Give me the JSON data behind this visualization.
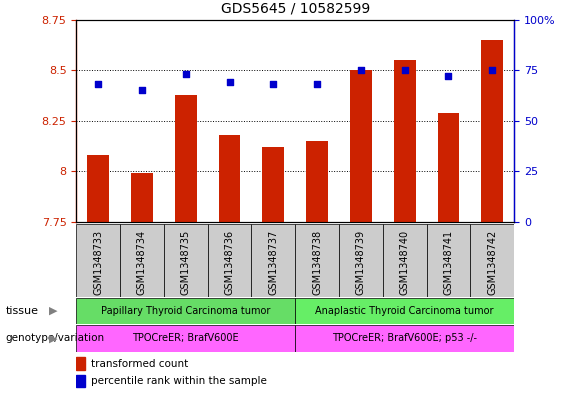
{
  "title": "GDS5645 / 10582599",
  "samples": [
    "GSM1348733",
    "GSM1348734",
    "GSM1348735",
    "GSM1348736",
    "GSM1348737",
    "GSM1348738",
    "GSM1348739",
    "GSM1348740",
    "GSM1348741",
    "GSM1348742"
  ],
  "transformed_count": [
    8.08,
    7.99,
    8.38,
    8.18,
    8.12,
    8.15,
    8.5,
    8.55,
    8.29,
    8.65
  ],
  "percentile_rank": [
    68,
    65,
    73,
    69,
    68,
    68,
    75,
    75,
    72,
    75
  ],
  "ylim_left": [
    7.75,
    8.75
  ],
  "ylim_right": [
    0,
    100
  ],
  "yticks_left": [
    7.75,
    8.0,
    8.25,
    8.5,
    8.75
  ],
  "ytick_labels_left": [
    "7.75",
    "8",
    "8.25",
    "8.5",
    "8.75"
  ],
  "yticks_right": [
    0,
    25,
    50,
    75,
    100
  ],
  "ytick_labels_right": [
    "0",
    "25",
    "50",
    "75",
    "100%"
  ],
  "bar_color": "#cc2200",
  "dot_color": "#0000cc",
  "bar_width": 0.5,
  "tissue_groups": [
    {
      "label": "Papillary Thyroid Carcinoma tumor",
      "start": 0,
      "end": 5,
      "color": "#66dd66"
    },
    {
      "label": "Anaplastic Thyroid Carcinoma tumor",
      "start": 5,
      "end": 10,
      "color": "#66ee66"
    }
  ],
  "genotype_groups": [
    {
      "label": "TPOCreER; BrafV600E",
      "start": 0,
      "end": 5,
      "color": "#ff66ff"
    },
    {
      "label": "TPOCreER; BrafV600E; p53 -/-",
      "start": 5,
      "end": 10,
      "color": "#ff66ff"
    }
  ],
  "tissue_label": "tissue",
  "genotype_label": "genotype/variation",
  "legend_items": [
    {
      "color": "#cc2200",
      "label": "transformed count"
    },
    {
      "color": "#0000cc",
      "label": "percentile rank within the sample"
    }
  ],
  "xtick_bg_color": "#cccccc",
  "plot_bg_color": "white"
}
